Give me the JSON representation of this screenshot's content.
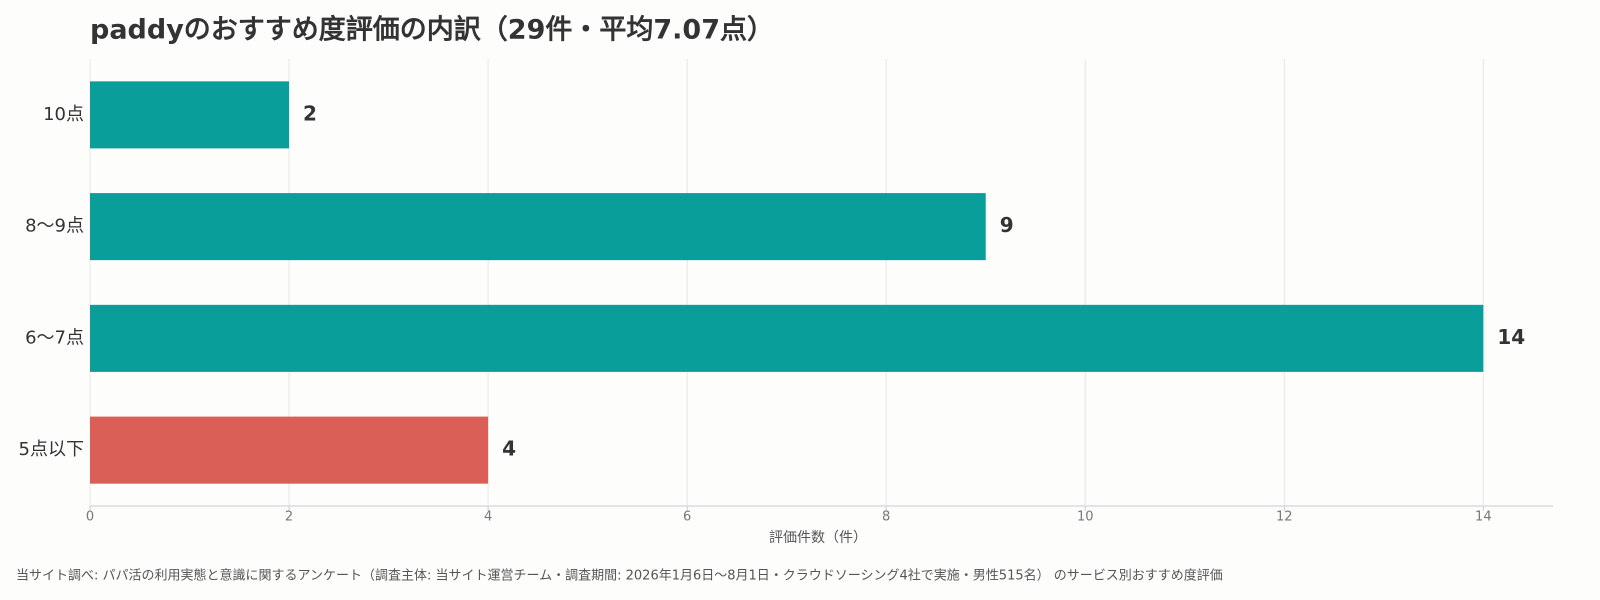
{
  "chart_data": {
    "type": "hbar",
    "title": "paddyのおすすめ度評価の内訳（29件・平均7.07点）",
    "categories": [
      "10点",
      "8〜9点",
      "6〜7点",
      "5点以下"
    ],
    "values": [
      2,
      9,
      14,
      4
    ],
    "colors": [
      "#0a9e9a",
      "#0a9e9a",
      "#0a9e9a",
      "#d95f57"
    ],
    "xlabel": "評価件数（件）",
    "xlim": [
      0,
      14.7
    ],
    "xticks": [
      0,
      2,
      4,
      6,
      8,
      10,
      12,
      14
    ],
    "grid": true,
    "footnote": "当サイト調べ: パパ活の利用実態と意識に関するアンケート（調査主体: 当サイト運営チーム・調査期間: 2026年1月6日〜8月1日・クラウドソーシング4社で実施・男性515名） のサービス別おすすめ度評価"
  }
}
